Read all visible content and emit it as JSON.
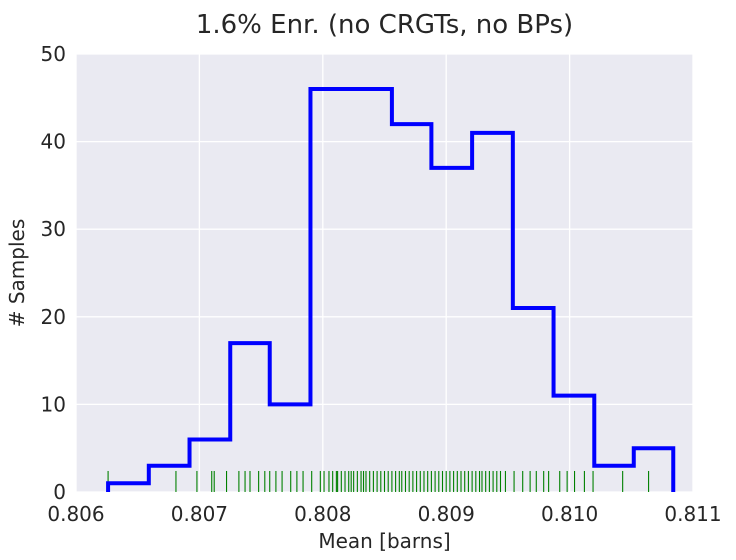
{
  "chart_data": {
    "type": "histogram",
    "title": "1.6% Enr. (no CRGTs, no BPs)",
    "xlabel": "Mean [barns]",
    "ylabel": "# Samples",
    "xlim": [
      0.806,
      0.811
    ],
    "ylim": [
      0,
      50
    ],
    "xticks": [
      "0.806",
      "0.807",
      "0.808",
      "0.809",
      "0.810",
      "0.811"
    ],
    "yticks": [
      "0",
      "10",
      "20",
      "30",
      "40",
      "50"
    ],
    "grid": true,
    "colors": {
      "background": "#eaeaf2",
      "grid": "#ffffff",
      "histogram": "#0000ff",
      "rug": "#008000",
      "text": "#262626"
    },
    "bins": {
      "edges": [
        0.80626,
        0.80659,
        0.80692,
        0.80725,
        0.80757,
        0.8079,
        0.80823,
        0.80856,
        0.80888,
        0.80921,
        0.80954,
        0.80987,
        0.8102,
        0.81052,
        0.81084
      ],
      "counts": [
        1,
        3,
        6,
        17,
        10,
        46,
        46,
        42,
        37,
        41,
        21,
        11,
        3,
        5
      ]
    },
    "rug": {
      "values": [
        0.80626,
        0.80681,
        0.80698,
        0.8071,
        0.80712,
        0.80722,
        0.80732,
        0.80737,
        0.80741,
        0.80748,
        0.80753,
        0.80757,
        0.80762,
        0.80767,
        0.80774,
        0.80779,
        0.80784,
        0.80791,
        0.80798,
        0.80801,
        0.80805,
        0.80808,
        0.80811,
        0.80812,
        0.80815,
        0.80818,
        0.80821,
        0.80823,
        0.80825,
        0.80828,
        0.80831,
        0.80833,
        0.80835,
        0.80838,
        0.80841,
        0.80844,
        0.80847,
        0.8085,
        0.80853,
        0.80856,
        0.80859,
        0.80862,
        0.80864,
        0.80867,
        0.8087,
        0.80873,
        0.80876,
        0.80879,
        0.80882,
        0.80885,
        0.80888,
        0.80891,
        0.80894,
        0.80897,
        0.809,
        0.80903,
        0.80906,
        0.80909,
        0.80912,
        0.80915,
        0.80918,
        0.80921,
        0.80924,
        0.80927,
        0.80929,
        0.80932,
        0.80935,
        0.80938,
        0.80941,
        0.80944,
        0.80948,
        0.80955,
        0.80962,
        0.80968,
        0.80973,
        0.80979,
        0.80983,
        0.80992,
        0.80998,
        0.81004,
        0.81012,
        0.81019,
        0.81043,
        0.81064,
        0.81083
      ]
    }
  }
}
